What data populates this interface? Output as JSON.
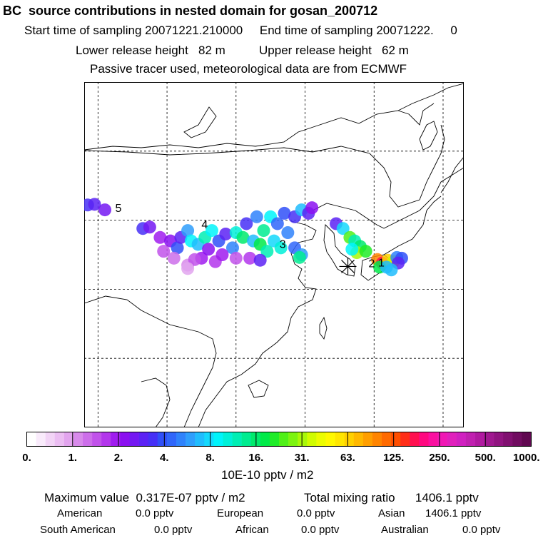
{
  "header": {
    "title": "BC  source contributions in nested domain for gosan_200712",
    "start_label": "Start time of sampling",
    "start_value": "20071221.210000",
    "end_label": "End time of sampling",
    "end_value": "20071222.     0",
    "lower_label": "Lower release height",
    "lower_value": "82 m",
    "upper_label": "Upper release height",
    "upper_value": "62 m",
    "note": "Passive tracer used, meteorological data are from ECMWF"
  },
  "chart_data": {
    "type": "heatmap",
    "title": "BC  source contributions in nested domain for gosan_200712",
    "colorbar_units": "10E-10 pptv / m2",
    "colorbar_ticks": [
      "0.",
      "1.",
      "2.",
      "4.",
      "8.",
      "16.",
      "31.",
      "63.",
      "125.",
      "250.",
      "500.",
      "1000."
    ],
    "colorbar_colors": [
      "#ffffff",
      "#f9ebfb",
      "#f2d4f6",
      "#ebbdf2",
      "#e2a4ee",
      "#d88aeb",
      "#cd6eea",
      "#c152ea",
      "#b336ec",
      "#a01cef",
      "#8b10f0",
      "#7418f2",
      "#5c22f4",
      "#4630f6",
      "#3050f8",
      "#3066fa",
      "#2f82fb",
      "#2e9efc",
      "#20bcfd",
      "#14d8fc",
      "#00f4fa",
      "#00f0d8",
      "#00eeb4",
      "#00ec90",
      "#00ea6c",
      "#00ea48",
      "#20ec28",
      "#50f018",
      "#7cf410",
      "#a8f808",
      "#d0fc00",
      "#ecfc00",
      "#fff800",
      "#ffe600",
      "#ffd000",
      "#ffb800",
      "#ff9e00",
      "#ff8400",
      "#ff6a00",
      "#ff4e00",
      "#ff2e18",
      "#ff1050",
      "#ff0880",
      "#fa10a0",
      "#f018b4",
      "#e020bc",
      "#d020c0",
      "#c020b0",
      "#b01aa0",
      "#a01890",
      "#901480",
      "#801070",
      "#700c60",
      "#600850"
    ],
    "map_dots": [
      {
        "lon": 88.5,
        "lat": 42.2,
        "level": 13
      },
      {
        "lon": 89.5,
        "lat": 42.3,
        "level": 12
      },
      {
        "lon": 91.0,
        "lat": 41.5,
        "level": 11
      },
      {
        "lon": 96.5,
        "lat": 38.8,
        "level": 13
      },
      {
        "lon": 97.5,
        "lat": 39.0,
        "level": 11
      },
      {
        "lon": 99.0,
        "lat": 37.5,
        "level": 9
      },
      {
        "lon": 100.5,
        "lat": 37.0,
        "level": 10
      },
      {
        "lon": 101.5,
        "lat": 36.0,
        "level": 14
      },
      {
        "lon": 102.0,
        "lat": 37.5,
        "level": 12
      },
      {
        "lon": 103.0,
        "lat": 38.5,
        "level": 17
      },
      {
        "lon": 103.5,
        "lat": 37.0,
        "level": 20
      },
      {
        "lon": 104.5,
        "lat": 36.5,
        "level": 18
      },
      {
        "lon": 105.5,
        "lat": 37.5,
        "level": 22
      },
      {
        "lon": 106.5,
        "lat": 38.5,
        "level": 20
      },
      {
        "lon": 107.5,
        "lat": 37.0,
        "level": 14
      },
      {
        "lon": 108.5,
        "lat": 38.0,
        "level": 12
      },
      {
        "lon": 109.5,
        "lat": 36.0,
        "level": 16
      },
      {
        "lon": 110.0,
        "lat": 38.2,
        "level": 21
      },
      {
        "lon": 111.0,
        "lat": 37.5,
        "level": 24
      },
      {
        "lon": 111.5,
        "lat": 39.5,
        "level": 13
      },
      {
        "lon": 112.5,
        "lat": 37.0,
        "level": 18
      },
      {
        "lon": 113.0,
        "lat": 40.5,
        "level": 16
      },
      {
        "lon": 113.5,
        "lat": 36.5,
        "level": 25
      },
      {
        "lon": 114.0,
        "lat": 38.5,
        "level": 23
      },
      {
        "lon": 114.5,
        "lat": 35.5,
        "level": 22
      },
      {
        "lon": 115.0,
        "lat": 40.5,
        "level": 20
      },
      {
        "lon": 115.5,
        "lat": 37.0,
        "level": 19
      },
      {
        "lon": 116.0,
        "lat": 39.5,
        "level": 15
      },
      {
        "lon": 116.5,
        "lat": 36.0,
        "level": 21
      },
      {
        "lon": 117.0,
        "lat": 41.0,
        "level": 14
      },
      {
        "lon": 117.5,
        "lat": 38.2,
        "level": 16
      },
      {
        "lon": 118.5,
        "lat": 40.5,
        "level": 13
      },
      {
        "lon": 119.5,
        "lat": 41.5,
        "level": 18
      },
      {
        "lon": 120.5,
        "lat": 41.0,
        "level": 12
      },
      {
        "lon": 121.0,
        "lat": 41.8,
        "level": 10
      },
      {
        "lon": 118.5,
        "lat": 36.0,
        "level": 15
      },
      {
        "lon": 119.5,
        "lat": 35.0,
        "level": 17
      },
      {
        "lon": 119.2,
        "lat": 34.6,
        "level": 23
      },
      {
        "lon": 105.0,
        "lat": 34.5,
        "level": 9
      },
      {
        "lon": 107.0,
        "lat": 34.0,
        "level": 8
      },
      {
        "lon": 110.0,
        "lat": 34.5,
        "level": 7
      },
      {
        "lon": 101.0,
        "lat": 34.5,
        "level": 6
      },
      {
        "lon": 99.5,
        "lat": 35.5,
        "level": 7
      },
      {
        "lon": 103.0,
        "lat": 33.5,
        "level": 5
      },
      {
        "lon": 104.0,
        "lat": 34.3,
        "level": 7
      },
      {
        "lon": 108.0,
        "lat": 35.0,
        "level": 9
      },
      {
        "lon": 112.0,
        "lat": 34.5,
        "level": 8
      },
      {
        "lon": 113.5,
        "lat": 34.2,
        "level": 12
      },
      {
        "lon": 103.0,
        "lat": 33.0,
        "level": 4
      },
      {
        "lon": 106.0,
        "lat": 35.8,
        "level": 10
      },
      {
        "lon": 124.5,
        "lat": 39.5,
        "level": 12
      },
      {
        "lon": 125.5,
        "lat": 38.8,
        "level": 19
      },
      {
        "lon": 126.5,
        "lat": 37.5,
        "level": 27
      },
      {
        "lon": 127.2,
        "lat": 37.0,
        "level": 22
      },
      {
        "lon": 128.0,
        "lat": 36.2,
        "level": 24
      },
      {
        "lon": 127.5,
        "lat": 35.3,
        "level": 29
      },
      {
        "lon": 126.8,
        "lat": 35.8,
        "level": 20
      },
      {
        "lon": 128.8,
        "lat": 35.5,
        "level": 26
      },
      {
        "lon": 130.5,
        "lat": 34.3,
        "level": 37
      },
      {
        "lon": 131.2,
        "lat": 33.8,
        "level": 41
      },
      {
        "lon": 132.0,
        "lat": 34.2,
        "level": 34
      },
      {
        "lon": 132.8,
        "lat": 34.0,
        "level": 30
      },
      {
        "lon": 130.8,
        "lat": 33.2,
        "level": 25
      },
      {
        "lon": 131.8,
        "lat": 33.2,
        "level": 18
      },
      {
        "lon": 133.3,
        "lat": 34.6,
        "level": 16
      },
      {
        "lon": 134.0,
        "lat": 34.5,
        "level": 14
      },
      {
        "lon": 133.5,
        "lat": 33.8,
        "level": 12
      },
      {
        "lon": 132.5,
        "lat": 32.8,
        "level": 18
      }
    ],
    "source_labels": [
      {
        "text": "5",
        "lon": 92.5,
        "lat": 41.2
      },
      {
        "text": "4",
        "lon": 105.0,
        "lat": 38.8
      },
      {
        "text": "3",
        "lon": 116.3,
        "lat": 36.0
      },
      {
        "text": "2",
        "lon": 129.2,
        "lat": 33.2
      },
      {
        "text": "1",
        "lon": 130.6,
        "lat": 33.3
      }
    ],
    "receptor": {
      "name": "gosan",
      "lon": 126.2,
      "lat": 33.3
    },
    "map_extent": {
      "lon": [
        88,
        143
      ],
      "lat": [
        10,
        60
      ]
    },
    "grid_lons": [
      90,
      100,
      110,
      120,
      130,
      140
    ],
    "grid_lats": [
      20,
      30,
      40,
      50
    ]
  },
  "stats": {
    "max_label": "Maximum value",
    "max_value": "0.317E-07 pptv / m2",
    "total_label": "Total mixing ratio",
    "total_value": "1406.1 pptv",
    "regions": [
      {
        "name": "American",
        "value": "0.0 pptv"
      },
      {
        "name": "European",
        "value": "0.0 pptv"
      },
      {
        "name": "Asian",
        "value": "1406.1 pptv"
      },
      {
        "name": "South American",
        "value": "0.0 pptv"
      },
      {
        "name": "African",
        "value": "0.0 pptv"
      },
      {
        "name": "Australian",
        "value": "0.0 pptv"
      }
    ]
  }
}
